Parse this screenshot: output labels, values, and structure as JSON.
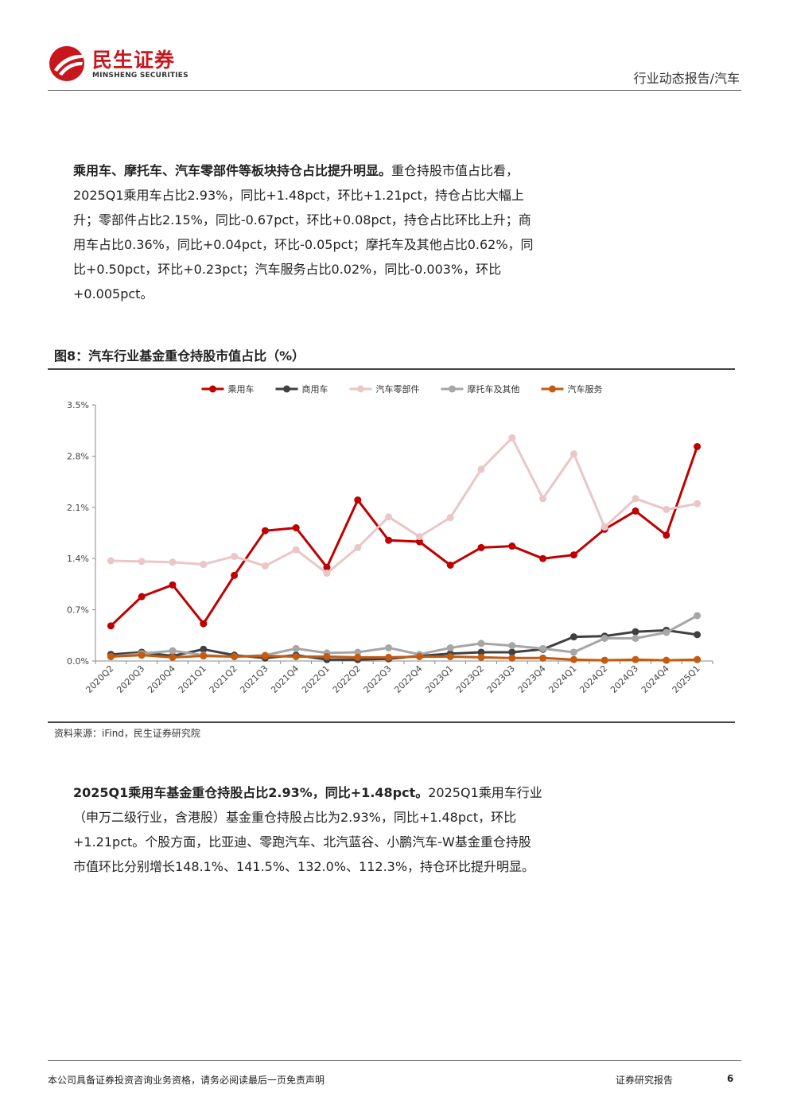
{
  "header": {
    "logo_cn": "民生证券",
    "logo_en": "MINSHENG SECURITIES",
    "report_type": "行业动态报告/汽车"
  },
  "para1": {
    "lead": "乘用车、摩托车、汽车零部件等板块持仓占比提升明显。",
    "body": "重仓持股市值占比看，2025Q1乘用车占比2.93%，同比+1.48pct，环比+1.21pct，持仓占比大幅上升；零部件占比2.15%，同比-0.67pct，环比+0.08pct，持仓占比环比上升；商用车占比0.36%，同比+0.04pct，环比-0.05pct；摩托车及其他占比0.62%，同比+0.50pct，环比+0.23pct；汽车服务占比0.02%，同比-0.003%，环比+0.005pct。"
  },
  "figure": {
    "title": "图8：汽车行业基金重仓持股市值占比（%）",
    "source": "资料来源：iFind，民生证券研究院"
  },
  "chart_data": {
    "type": "line",
    "title": "",
    "xlabel": "",
    "ylabel": "",
    "ylim": [
      0,
      3.5
    ],
    "yticks": [
      "0.0%",
      "0.7%",
      "1.4%",
      "2.1%",
      "2.8%",
      "3.5%"
    ],
    "legend_position": "top",
    "grid": false,
    "categories": [
      "2020Q2",
      "2020Q3",
      "2020Q4",
      "2021Q1",
      "2021Q2",
      "2021Q3",
      "2021Q4",
      "2022Q1",
      "2022Q2",
      "2022Q3",
      "2022Q4",
      "2023Q1",
      "2023Q2",
      "2023Q3",
      "2023Q4",
      "2024Q1",
      "2024Q2",
      "2024Q3",
      "2024Q4",
      "2025Q1"
    ],
    "series": [
      {
        "name": "乘用车",
        "color": "#c00000",
        "values": [
          0.48,
          0.88,
          1.04,
          0.51,
          1.17,
          1.78,
          1.82,
          1.28,
          2.2,
          1.65,
          1.63,
          1.31,
          1.55,
          1.57,
          1.4,
          1.45,
          1.8,
          2.05,
          1.72,
          2.93
        ]
      },
      {
        "name": "商用车",
        "color": "#404040",
        "values": [
          0.09,
          0.12,
          0.07,
          0.16,
          0.08,
          0.04,
          0.08,
          0.02,
          0.02,
          0.03,
          0.07,
          0.1,
          0.12,
          0.12,
          0.16,
          0.33,
          0.34,
          0.4,
          0.42,
          0.36
        ]
      },
      {
        "name": "汽车零部件",
        "color": "#eac6c6",
        "values": [
          1.37,
          1.36,
          1.35,
          1.32,
          1.43,
          1.3,
          1.52,
          1.2,
          1.55,
          1.97,
          1.7,
          1.96,
          2.62,
          3.05,
          2.22,
          2.83,
          1.83,
          2.22,
          2.07,
          2.15
        ]
      },
      {
        "name": "摩托车及其他",
        "color": "#a6a6a6",
        "values": [
          0.06,
          0.1,
          0.14,
          0.08,
          0.06,
          0.08,
          0.17,
          0.11,
          0.12,
          0.18,
          0.09,
          0.18,
          0.24,
          0.21,
          0.17,
          0.12,
          0.31,
          0.31,
          0.39,
          0.62
        ]
      },
      {
        "name": "汽车服务",
        "color": "#c55a11",
        "values": [
          0.06,
          0.08,
          0.05,
          0.07,
          0.06,
          0.07,
          0.06,
          0.06,
          0.05,
          0.05,
          0.06,
          0.06,
          0.05,
          0.04,
          0.04,
          0.02,
          0.01,
          0.02,
          0.01,
          0.02
        ]
      }
    ]
  },
  "para2": {
    "lead": "2025Q1乘用车基金重仓持股占比2.93%，同比+1.48pct。",
    "body": "2025Q1乘用车行业（申万二级行业，含港股）基金重仓持股占比为2.93%，同比+1.48pct，环比+1.21pct。个股方面，比亚迪、零跑汽车、北汽蓝谷、小鹏汽车-W基金重仓持股市值环比分别增长148.1%、141.5%、132.0%、112.3%，持仓环比提升明显。"
  },
  "footer": {
    "disclaimer": "本公司具备证券投资咨询业务资格，请务必阅读最后一页免责声明",
    "label": "证券研究报告",
    "page": "6"
  },
  "colors": {
    "brand_red": "#c8161d"
  }
}
